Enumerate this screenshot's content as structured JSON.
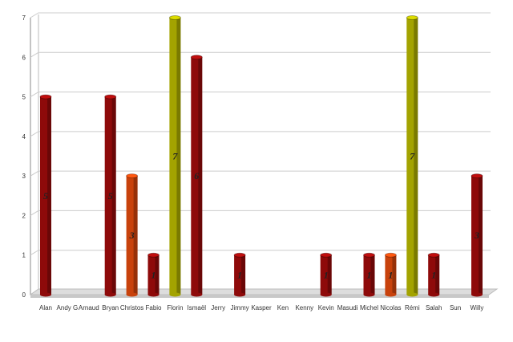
{
  "chart_data": {
    "type": "bar",
    "style": "3d-cylinder",
    "categories": [
      "Alan",
      "Andy G",
      "Arnaud",
      "Bryan",
      "Christos",
      "Fabio",
      "Florin",
      "Ismaël",
      "Jerry",
      "Jimmy",
      "Kasper",
      "Ken",
      "Kenny",
      "Kevin",
      "Masudi",
      "Michel",
      "Nicolas",
      "Rémi",
      "Salah",
      "Sun",
      "Willy"
    ],
    "values": [
      5,
      0,
      0,
      5,
      3,
      1,
      7,
      6,
      0,
      1,
      0,
      0,
      0,
      1,
      0,
      1,
      1,
      7,
      1,
      0,
      3
    ],
    "bar_colors": [
      "#8e0a0a",
      "#8e0a0a",
      "#8e0a0a",
      "#8e0a0a",
      "#c8420c",
      "#8e0a0a",
      "#a3a300",
      "#8e0a0a",
      "#8e0a0a",
      "#8e0a0a",
      "#8e0a0a",
      "#8e0a0a",
      "#8e0a0a",
      "#8e0a0a",
      "#8e0a0a",
      "#8e0a0a",
      "#c8420c",
      "#a3a300",
      "#8e0a0a",
      "#8e0a0a",
      "#8e0a0a"
    ],
    "data_labels": true,
    "yticks": [
      0,
      1,
      2,
      3,
      4,
      5,
      6,
      7
    ],
    "ylim": [
      0,
      7
    ],
    "grid": true,
    "title": "",
    "xlabel": "",
    "ylabel": ""
  }
}
